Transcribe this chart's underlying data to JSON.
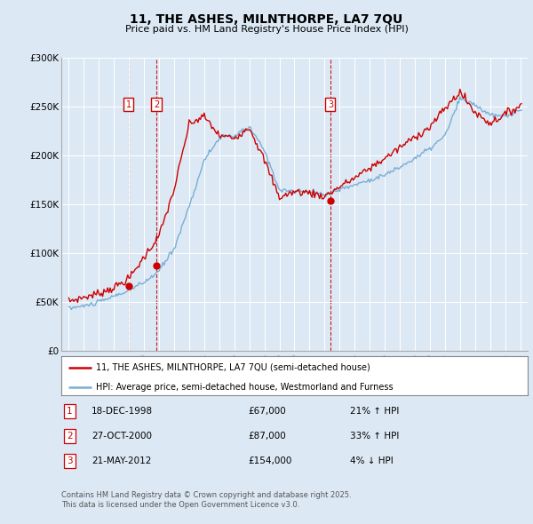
{
  "title": "11, THE ASHES, MILNTHORPE, LA7 7QU",
  "subtitle": "Price paid vs. HM Land Registry's House Price Index (HPI)",
  "ylabel_ticks": [
    "£0",
    "£50K",
    "£100K",
    "£150K",
    "£200K",
    "£250K",
    "£300K"
  ],
  "ytick_vals": [
    0,
    50000,
    100000,
    150000,
    200000,
    250000,
    300000
  ],
  "ylim": [
    0,
    300000
  ],
  "xlim_start": 1994.5,
  "xlim_end": 2025.5,
  "bg_color": "#dce9f5",
  "plot_bg_color": "#dce9f5",
  "grid_color": "#ffffff",
  "red_color": "#cc0000",
  "blue_color": "#7aadd4",
  "sale_dates": [
    1998.96,
    2000.82,
    2012.39
  ],
  "sale_prices": [
    67000,
    87000,
    154000
  ],
  "sale_labels": [
    "1",
    "2",
    "3"
  ],
  "sale_date_strs": [
    "18-DEC-1998",
    "27-OCT-2000",
    "21-MAY-2012"
  ],
  "sale_price_strs": [
    "£67,000",
    "£87,000",
    "£154,000"
  ],
  "sale_hpi_strs": [
    "21% ↑ HPI",
    "33% ↑ HPI",
    "4% ↓ HPI"
  ],
  "legend_line1": "11, THE ASHES, MILNTHORPE, LA7 7QU (semi-detached house)",
  "legend_line2": "HPI: Average price, semi-detached house, Westmorland and Furness",
  "footer": "Contains HM Land Registry data © Crown copyright and database right 2025.\nThis data is licensed under the Open Government Licence v3.0.",
  "hpi_y_by_year": {
    "1995": 44000,
    "1996": 46000,
    "1997": 50000,
    "1998": 56000,
    "1999": 62000,
    "2000": 70000,
    "2001": 82000,
    "2002": 105000,
    "2003": 148000,
    "2004": 195000,
    "2005": 218000,
    "2006": 220000,
    "2007": 229000,
    "2008": 205000,
    "2009": 165000,
    "2010": 163000,
    "2011": 163000,
    "2012": 160000,
    "2013": 165000,
    "2014": 170000,
    "2015": 175000,
    "2016": 180000,
    "2017": 188000,
    "2018": 197000,
    "2019": 207000,
    "2020": 220000,
    "2021": 258000,
    "2022": 252000,
    "2023": 241000,
    "2024": 240000,
    "2025": 246000
  },
  "prop_y_by_year": {
    "1995": 51000,
    "1996": 55000,
    "1997": 59000,
    "1998": 65000,
    "1999": 74000,
    "2000": 96000,
    "2001": 118000,
    "2002": 165000,
    "2003": 232000,
    "2004": 240000,
    "2005": 220000,
    "2006": 218000,
    "2007": 229000,
    "2008": 195000,
    "2009": 157000,
    "2010": 163000,
    "2011": 162000,
    "2012": 158000,
    "2013": 168000,
    "2014": 177000,
    "2015": 187000,
    "2016": 197000,
    "2017": 208000,
    "2018": 219000,
    "2019": 229000,
    "2020": 248000,
    "2021": 265000,
    "2022": 244000,
    "2023": 233000,
    "2024": 242000,
    "2025": 251000
  }
}
